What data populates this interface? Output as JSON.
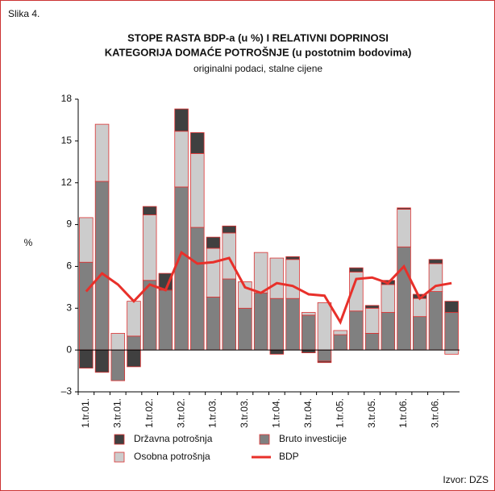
{
  "chart_data": {
    "type": "bar",
    "figure_label": "Slika 4.",
    "title": "STOPE RASTA BDP-a (u %) I RELATIVNI DOPRINOSI",
    "title2": "KATEGORIJA DOMAĆE POTROŠNJE (u postotnim bodovima)",
    "subtitle": "originalni podaci, stalne cijene",
    "ylabel": "%",
    "source": "Izvor: DZS",
    "categories": [
      "1.tr.01.",
      null,
      "3.tr.01.",
      null,
      "1.tr.02.",
      null,
      "3.tr.02.",
      null,
      "1.tr.03.",
      null,
      "3.tr.03.",
      null,
      "1.tr.04.",
      null,
      "3.tr.04.",
      null,
      "1.tr.05.",
      null,
      "3.tr.05.",
      null,
      "1.tr.06.",
      null,
      "3.tr.06.",
      null
    ],
    "ylim": [
      -3,
      18
    ],
    "yticks": [
      {
        "value": -3,
        "label": "–3"
      },
      0,
      3,
      6,
      9,
      12,
      15,
      18
    ],
    "series": [
      {
        "name": "Bruto investicije",
        "color": "#808080",
        "values": [
          6.3,
          12.1,
          -2.2,
          1.0,
          5.0,
          4.3,
          11.7,
          8.8,
          3.8,
          5.1,
          3.0,
          4.1,
          3.7,
          3.7,
          2.5,
          -0.8,
          1.1,
          2.8,
          1.2,
          2.7,
          7.4,
          2.4,
          4.2,
          2.7
        ]
      },
      {
        "name": "Osobna potrošnja",
        "color": "#cccccc",
        "values": [
          3.2,
          4.1,
          1.2,
          2.5,
          4.7,
          0,
          4.0,
          5.3,
          3.5,
          3.3,
          1.9,
          2.9,
          2.9,
          2.8,
          0.2,
          3.4,
          0.3,
          2.8,
          1.8,
          2.0,
          2.7,
          1.3,
          2.0,
          -0.3
        ]
      },
      {
        "name": "Državna potrošnja",
        "color": "#404040",
        "values": [
          -1.3,
          -1.6,
          0,
          -1.2,
          0.6,
          1.2,
          1.6,
          1.5,
          0.8,
          0.5,
          0,
          0,
          -0.3,
          0.2,
          -0.2,
          -0.1,
          0,
          0.3,
          0.2,
          0.3,
          0.1,
          0.3,
          0.3,
          0.8
        ]
      },
      {
        "name": "BDP",
        "type": "line",
        "color": "#e8302a",
        "values": [
          4.2,
          5.5,
          4.7,
          3.5,
          4.7,
          4.3,
          7.0,
          6.2,
          6.3,
          6.6,
          4.5,
          4.1,
          4.8,
          4.6,
          4.0,
          3.9,
          2.0,
          5.1,
          5.2,
          4.8,
          6.0,
          3.7,
          4.6,
          4.8
        ]
      }
    ]
  }
}
